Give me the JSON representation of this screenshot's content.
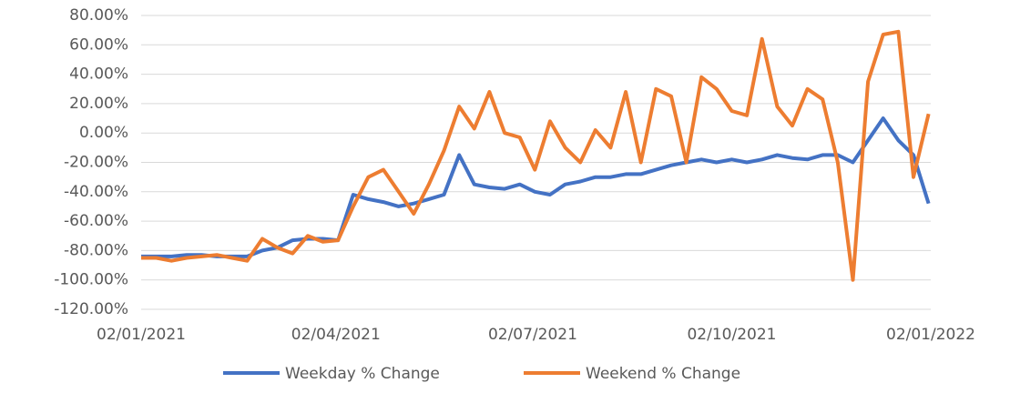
{
  "chart_data": {
    "type": "line",
    "x": [
      "2021-01-02",
      "2021-01-09",
      "2021-01-16",
      "2021-01-23",
      "2021-01-30",
      "2021-02-06",
      "2021-02-13",
      "2021-02-20",
      "2021-02-27",
      "2021-03-06",
      "2021-03-13",
      "2021-03-20",
      "2021-03-27",
      "2021-04-03",
      "2021-04-10",
      "2021-04-17",
      "2021-04-24",
      "2021-05-01",
      "2021-05-08",
      "2021-05-15",
      "2021-05-22",
      "2021-05-29",
      "2021-06-05",
      "2021-06-12",
      "2021-06-19",
      "2021-06-26",
      "2021-07-03",
      "2021-07-10",
      "2021-07-17",
      "2021-07-24",
      "2021-07-31",
      "2021-08-07",
      "2021-08-14",
      "2021-08-21",
      "2021-08-28",
      "2021-09-04",
      "2021-09-11",
      "2021-09-18",
      "2021-09-25",
      "2021-10-02",
      "2021-10-09",
      "2021-10-16",
      "2021-10-23",
      "2021-10-30",
      "2021-11-06",
      "2021-11-13",
      "2021-11-20",
      "2021-11-27",
      "2021-12-04",
      "2021-12-11",
      "2021-12-18",
      "2021-12-25",
      "2022-01-01"
    ],
    "series": [
      {
        "name": "Weekday % Change",
        "color": "#4472c4",
        "values": [
          -84,
          -84,
          -84,
          -83,
          -83,
          -84,
          -84,
          -84,
          -80,
          -78,
          -73,
          -72,
          -72,
          -73,
          -42,
          -45,
          -47,
          -50,
          -48,
          -45,
          -42,
          -15,
          -35,
          -37,
          -38,
          -35,
          -40,
          -42,
          -35,
          -33,
          -30,
          -30,
          -28,
          -28,
          -25,
          -22,
          -20,
          -18,
          -20,
          -18,
          -20,
          -18,
          -15,
          -17,
          -18,
          -15,
          -15,
          -20,
          -5,
          10,
          -5,
          -15,
          -48
        ]
      },
      {
        "name": "Weekend % Change",
        "color": "#ed7d31",
        "values": [
          -85,
          -85,
          -87,
          -85,
          -84,
          -83,
          -85,
          -87,
          -72,
          -78,
          -82,
          -70,
          -74,
          -73,
          -50,
          -30,
          -25,
          -40,
          -55,
          -35,
          -12,
          18,
          3,
          28,
          0,
          -3,
          -25,
          8,
          -10,
          -20,
          2,
          -10,
          28,
          -20,
          30,
          25,
          -20,
          38,
          30,
          15,
          12,
          64,
          18,
          5,
          30,
          23,
          -20,
          -100,
          35,
          67,
          69,
          -30,
          13
        ]
      }
    ],
    "xlim": [
      "2021-01-02",
      "2022-01-02"
    ],
    "xticks": [
      {
        "value": "2021-01-02",
        "label": "02/01/2021"
      },
      {
        "value": "2021-04-02",
        "label": "02/04/2021"
      },
      {
        "value": "2021-07-02",
        "label": "02/07/2021"
      },
      {
        "value": "2021-10-02",
        "label": "02/10/2021"
      },
      {
        "value": "2022-01-02",
        "label": "02/01/2022"
      }
    ],
    "ylim": [
      -120,
      80
    ],
    "yticks": [
      {
        "value": 80,
        "label": "80.00%"
      },
      {
        "value": 60,
        "label": "60.00%"
      },
      {
        "value": 40,
        "label": "40.00%"
      },
      {
        "value": 20,
        "label": "20.00%"
      },
      {
        "value": 0,
        "label": "0.00%"
      },
      {
        "value": -20,
        "label": "-20.00%"
      },
      {
        "value": -40,
        "label": "-40.00%"
      },
      {
        "value": -60,
        "label": "-60.00%"
      },
      {
        "value": -80,
        "label": "-80.00%"
      },
      {
        "value": -100,
        "label": "-100.00%"
      },
      {
        "value": -120,
        "label": "-120.00%"
      }
    ],
    "grid": true,
    "legend": "bottom"
  }
}
